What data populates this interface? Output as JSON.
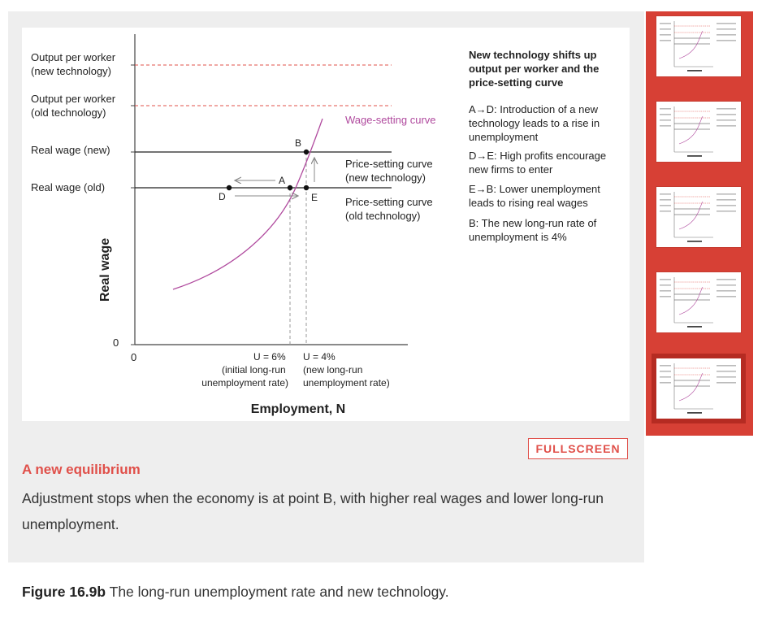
{
  "figure": {
    "y_labels": {
      "output_new": [
        "Output per worker",
        "(new technology)"
      ],
      "output_old": [
        "Output per worker",
        "(old technology)"
      ],
      "wage_new": "Real wage (new)",
      "wage_old": "Real wage (old)",
      "zero": "0"
    },
    "x_zero": "0",
    "y_axis_title": "Real wage",
    "x_axis_title": "Employment, N",
    "curve_labels": {
      "wage_setting": "Wage-setting curve",
      "ps_new": [
        "Price-setting curve",
        "(new technology)"
      ],
      "ps_old": [
        "Price-setting curve",
        "(old technology)"
      ]
    },
    "points": {
      "A": "A",
      "B": "B",
      "D": "D",
      "E": "E"
    },
    "x_notes": {
      "u6": [
        "U = 6%",
        "(initial long-run",
        "unemployment rate)"
      ],
      "u4": [
        "U = 4%",
        "(new long-run",
        "unemployment rate)"
      ]
    },
    "colors": {
      "wage_curve": "#b04a9e",
      "output_dash": "#e0504a",
      "accent": "#e0504a"
    }
  },
  "annotations": {
    "heading": "New technology shifts up output per worker and the price-setting curve",
    "items": [
      "A→D: Introduction of a new technology leads to a rise in unemployment",
      "D→E: High profits encourage new firms to enter",
      "E→B: Lower unemployment leads to rising real wages",
      "B: The new long-run rate of unemployment is 4%"
    ]
  },
  "fullscreen_label": "FULLSCREEN",
  "step": {
    "title": "A new equilibrium",
    "body": "Adjustment stops when the economy is at point B, with higher real wages and lower long-run unemployment."
  },
  "caption": {
    "label": "Figure 16.9b",
    "text": " The long-run unemployment rate and new technology."
  },
  "thumbnails": {
    "count": 5,
    "active_index": 4
  }
}
